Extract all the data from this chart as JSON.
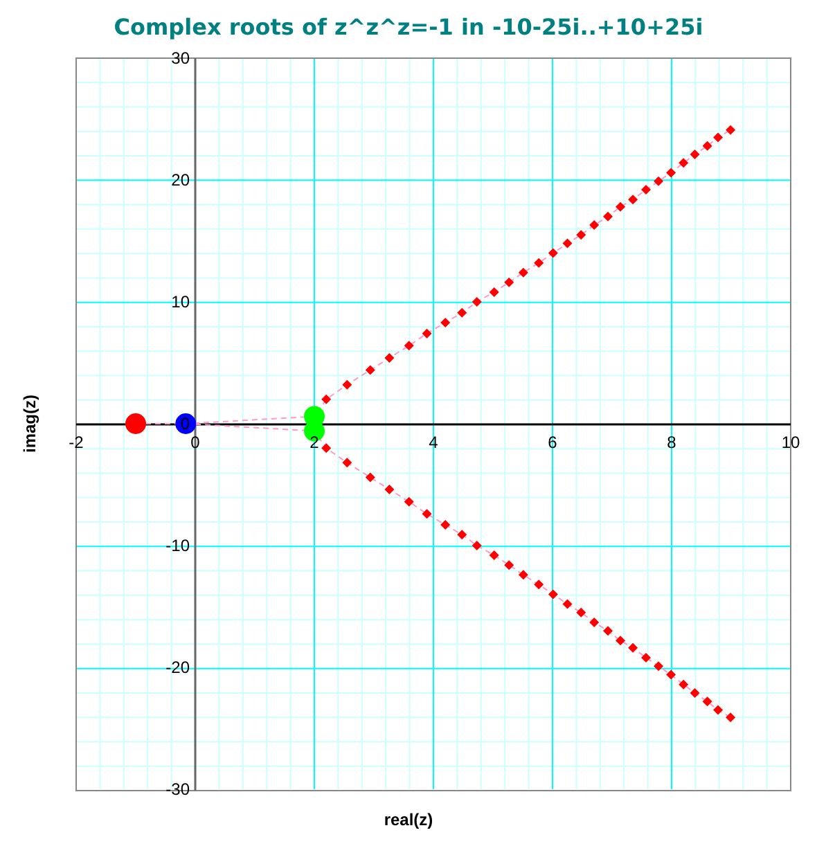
{
  "chart_data": {
    "type": "scatter",
    "title": "Complex roots of z^z^z=-1 in -10-25i..+10+25i",
    "xlabel": "real(z)",
    "ylabel": "imag(z)",
    "xlim": [
      -2,
      10
    ],
    "ylim": [
      -30,
      30
    ],
    "xticks": [
      -2,
      {
        "value": -1.6,
        "label": null
      },
      {
        "value": -1.2,
        "label": null
      },
      {
        "value": -0.8,
        "label": null
      },
      {
        "value": -0.4,
        "label": null
      },
      0,
      {
        "value": 0.4,
        "label": null
      },
      {
        "value": 0.8,
        "label": null
      },
      {
        "value": 1.2,
        "label": null
      },
      {
        "value": 1.6,
        "label": null
      },
      2,
      {
        "value": 2.4,
        "label": null
      },
      {
        "value": 2.8,
        "label": null
      },
      {
        "value": 3.2,
        "label": null
      },
      {
        "value": 3.6,
        "label": null
      },
      4,
      {
        "value": 4.4,
        "label": null
      },
      {
        "value": 4.8,
        "label": null
      },
      {
        "value": 5.2,
        "label": null
      },
      {
        "value": 5.6,
        "label": null
      },
      6,
      {
        "value": 6.4,
        "label": null
      },
      {
        "value": 6.8,
        "label": null
      },
      {
        "value": 7.2,
        "label": null
      },
      {
        "value": 7.6,
        "label": null
      },
      8,
      {
        "value": 8.4,
        "label": null
      },
      {
        "value": 8.8,
        "label": null
      },
      {
        "value": 9.2,
        "label": null
      },
      {
        "value": 9.6,
        "label": null
      },
      10
    ],
    "yticks": [
      -30,
      {
        "value": -28,
        "label": null
      },
      {
        "value": -26,
        "label": null
      },
      {
        "value": -24,
        "label": null
      },
      {
        "value": -22,
        "label": null
      },
      -20,
      {
        "value": -18,
        "label": null
      },
      {
        "value": -16,
        "label": null
      },
      {
        "value": -14,
        "label": null
      },
      {
        "value": -12,
        "label": null
      },
      -10,
      {
        "value": -8,
        "label": null
      },
      {
        "value": -6,
        "label": null
      },
      {
        "value": -4,
        "label": null
      },
      {
        "value": -2,
        "label": null
      },
      0,
      {
        "value": 2,
        "label": null
      },
      {
        "value": 4,
        "label": null
      },
      {
        "value": 6,
        "label": null
      },
      {
        "value": 8,
        "label": null
      },
      10,
      {
        "value": 12,
        "label": null
      },
      {
        "value": 14,
        "label": null
      },
      {
        "value": 16,
        "label": null
      },
      {
        "value": 18,
        "label": null
      },
      20,
      {
        "value": 22,
        "label": null
      },
      {
        "value": 24,
        "label": null
      },
      {
        "value": 26,
        "label": null
      },
      {
        "value": 28,
        "label": null
      },
      30
    ],
    "grid": true,
    "series": [
      {
        "type": "line",
        "color": "#ff99cc",
        "line_style": "dashed",
        "marker": "none",
        "x": [
          -1,
          -0.16,
          2,
          2.2,
          2.55,
          2.94,
          3.26,
          3.59,
          3.89,
          4.2,
          4.48,
          4.73,
          5.02,
          5.27,
          5.51,
          5.77,
          6.01,
          6.25,
          6.48,
          6.7,
          6.93,
          7.14,
          7.35,
          7.57,
          7.78,
          7.99,
          8.2,
          8.39,
          8.6,
          8.78,
          8.99
        ],
        "values": [
          0,
          0,
          0.6,
          2.0,
          3.2,
          4.4,
          5.4,
          6.4,
          7.4,
          8.3,
          9.1,
          10.0,
          10.8,
          11.6,
          12.4,
          13.2,
          14.0,
          14.8,
          15.5,
          16.3,
          17.0,
          17.8,
          18.4,
          19.2,
          19.9,
          20.6,
          21.4,
          22.1,
          22.8,
          23.5,
          24.1
        ]
      },
      {
        "type": "line",
        "color": "#ff99cc",
        "line_style": "dashed",
        "marker": "none",
        "x": [
          -0.16,
          2,
          2.2,
          2.55,
          2.94,
          3.26,
          3.59,
          3.89,
          4.2,
          4.48,
          4.73,
          5.02,
          5.27,
          5.51,
          5.77,
          6.01,
          6.25,
          6.48,
          6.7,
          6.93,
          7.14,
          7.35,
          7.57,
          7.78,
          7.99,
          8.2,
          8.39,
          8.6,
          8.78,
          8.99
        ],
        "values": [
          0,
          -0.6,
          -2.0,
          -3.2,
          -4.4,
          -5.4,
          -6.4,
          -7.4,
          -8.3,
          -9.1,
          -10.0,
          -10.8,
          -11.6,
          -12.4,
          -13.2,
          -14.0,
          -14.8,
          -15.5,
          -16.3,
          -17.0,
          -17.8,
          -18.4,
          -19.2,
          -19.9,
          -20.6,
          -21.4,
          -22.1,
          -22.8,
          -23.5,
          -24.1
        ]
      },
      {
        "type": "scatter",
        "color": "#ff0000",
        "marker": "diamond",
        "x": [
          2.2,
          2.55,
          2.94,
          3.26,
          3.59,
          3.89,
          4.2,
          4.48,
          4.73,
          5.02,
          5.27,
          5.51,
          5.77,
          6.01,
          6.25,
          6.48,
          6.7,
          6.93,
          7.14,
          7.35,
          7.57,
          7.78,
          7.99,
          8.2,
          8.39,
          8.6,
          8.78,
          8.99,
          2.2,
          2.55,
          2.94,
          3.26,
          3.59,
          3.89,
          4.2,
          4.48,
          4.73,
          5.02,
          5.27,
          5.51,
          5.77,
          6.01,
          6.25,
          6.48,
          6.7,
          6.93,
          7.14,
          7.35,
          7.57,
          7.78,
          7.99,
          8.2,
          8.39,
          8.6,
          8.78,
          8.99
        ],
        "values": [
          2.0,
          3.2,
          4.4,
          5.4,
          6.4,
          7.4,
          8.3,
          9.1,
          10.0,
          10.8,
          11.6,
          12.4,
          13.2,
          14.0,
          14.8,
          15.5,
          16.3,
          17.0,
          17.8,
          18.4,
          19.2,
          19.9,
          20.6,
          21.4,
          22.1,
          22.8,
          23.5,
          24.1,
          -2.0,
          -3.2,
          -4.4,
          -5.4,
          -6.4,
          -7.4,
          -8.3,
          -9.1,
          -10.0,
          -10.8,
          -11.6,
          -12.4,
          -13.2,
          -14.0,
          -14.8,
          -15.5,
          -16.3,
          -17.0,
          -17.8,
          -18.4,
          -19.2,
          -19.9,
          -20.6,
          -21.4,
          -22.1,
          -22.8,
          -23.5,
          -24.1
        ]
      },
      {
        "type": "scatter",
        "color": "#ff0000",
        "marker": "circle",
        "x": [
          -1
        ],
        "values": [
          0
        ]
      },
      {
        "type": "scatter",
        "color": "#0000ff",
        "marker": "circle",
        "x": [
          -0.16
        ],
        "values": [
          0
        ]
      },
      {
        "type": "scatter",
        "color": "#00ff00",
        "marker": "circle",
        "x": [
          2,
          2
        ],
        "values": [
          0.6,
          -0.6
        ]
      }
    ]
  }
}
